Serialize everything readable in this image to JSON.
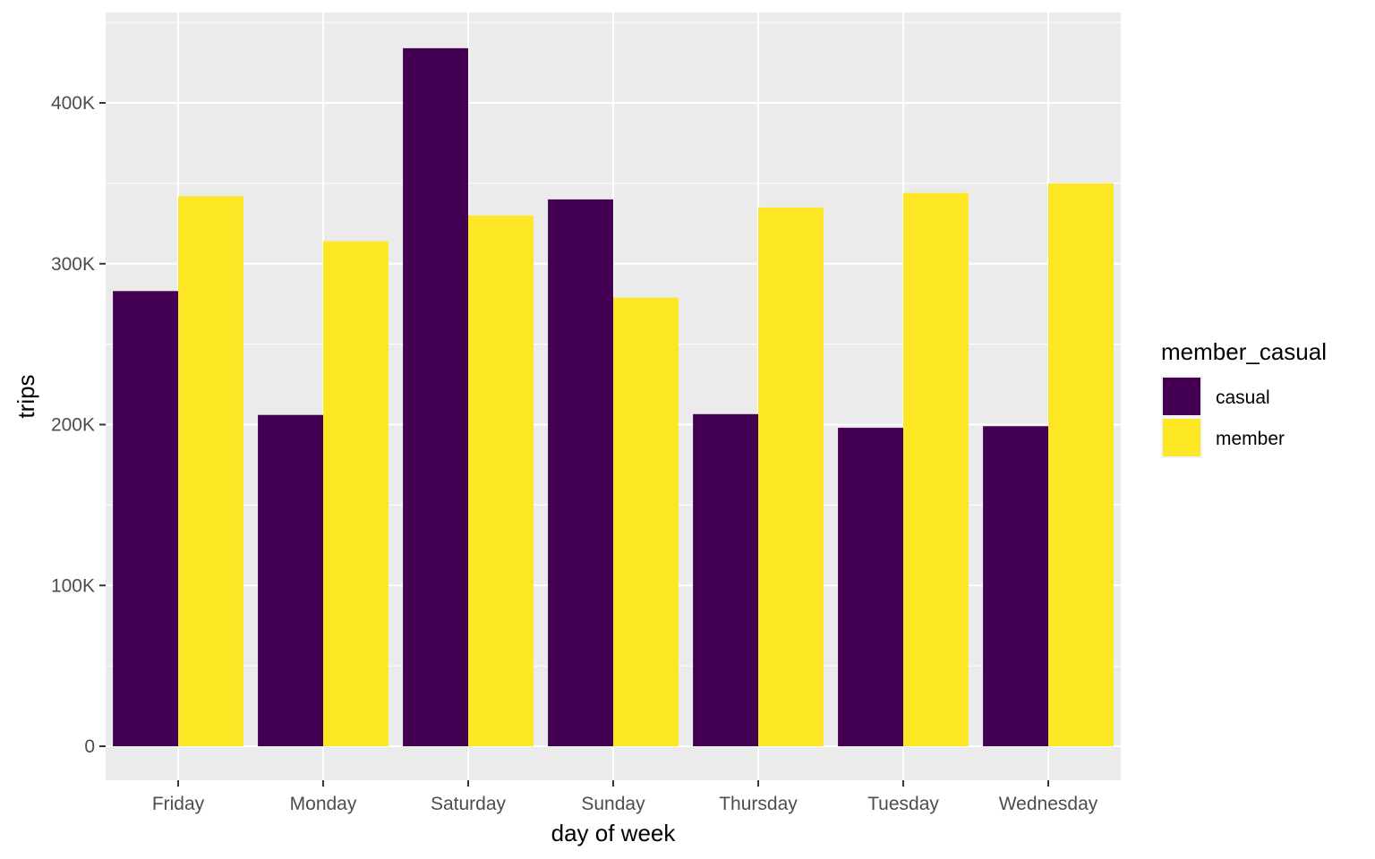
{
  "chart_data": {
    "type": "bar",
    "categories": [
      "Friday",
      "Monday",
      "Saturday",
      "Sunday",
      "Thursday",
      "Tuesday",
      "Wednesday"
    ],
    "series": [
      {
        "name": "casual",
        "color": "#440154",
        "values": [
          283000,
          206000,
          434000,
          340000,
          206500,
          198000,
          199000
        ]
      },
      {
        "name": "member",
        "color": "#FDE725",
        "values": [
          342000,
          314000,
          330000,
          279000,
          335000,
          344000,
          350000
        ]
      }
    ],
    "xlabel": "day of week",
    "ylabel": "trips",
    "ylim": [
      0,
      450000
    ],
    "y_ticks": [
      0,
      100000,
      200000,
      300000,
      400000
    ],
    "y_tick_labels": [
      "0",
      "100K",
      "200K",
      "300K",
      "400K"
    ],
    "legend": {
      "title": "member_casual",
      "position": "right"
    },
    "grid": true,
    "panel_background": "#EBEBEB",
    "grid_color": "#FFFFFF"
  }
}
